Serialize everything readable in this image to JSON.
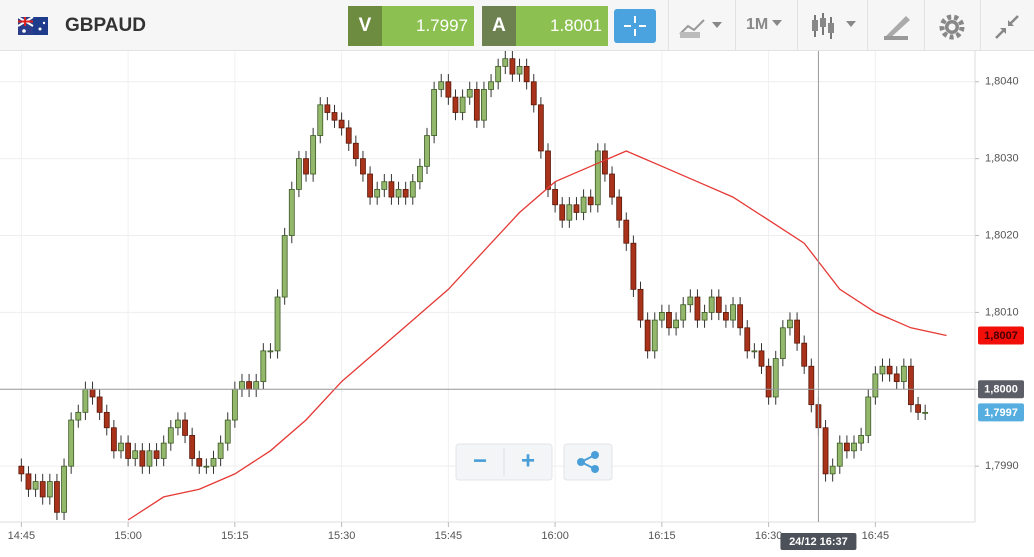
{
  "header": {
    "symbol": "GBPAUD",
    "bid_label": "V",
    "bid": "1.7997",
    "ask_label": "A",
    "ask": "1.8001",
    "timeframe": "1M"
  },
  "zoom": {
    "out": "−",
    "in": "+"
  },
  "chart_data": {
    "type": "candlestick",
    "x": [
      "14:45",
      "14:46",
      "14:47",
      "14:48",
      "14:49",
      "14:50",
      "14:51",
      "14:52",
      "14:53",
      "14:54",
      "14:55",
      "14:56",
      "14:57",
      "14:58",
      "14:59",
      "15:00",
      "15:01",
      "15:02",
      "15:03",
      "15:04",
      "15:05",
      "15:06",
      "15:07",
      "15:08",
      "15:09",
      "15:10",
      "15:11",
      "15:12",
      "15:13",
      "15:14",
      "15:15",
      "15:16",
      "15:17",
      "15:18",
      "15:19",
      "15:20",
      "15:21",
      "15:22",
      "15:23",
      "15:24",
      "15:25",
      "15:26",
      "15:27",
      "15:28",
      "15:29",
      "15:30",
      "15:31",
      "15:32",
      "15:33",
      "15:34",
      "15:35",
      "15:36",
      "15:37",
      "15:38",
      "15:39",
      "15:40",
      "15:41",
      "15:42",
      "15:43",
      "15:44",
      "15:45",
      "15:46",
      "15:47",
      "15:48",
      "15:49",
      "15:50",
      "15:51",
      "15:52",
      "15:53",
      "15:54",
      "15:55",
      "15:56",
      "15:57",
      "15:58",
      "15:59",
      "16:00",
      "16:01",
      "16:02",
      "16:03",
      "16:04",
      "16:05",
      "16:06",
      "16:07",
      "16:08",
      "16:09",
      "16:10",
      "16:11",
      "16:12",
      "16:13",
      "16:14",
      "16:15",
      "16:16",
      "16:17",
      "16:18",
      "16:19",
      "16:20",
      "16:21",
      "16:22",
      "16:23",
      "16:24",
      "16:25",
      "16:26",
      "16:27",
      "16:28",
      "16:29",
      "16:30",
      "16:31",
      "16:32",
      "16:33",
      "16:34",
      "16:35",
      "16:36",
      "16:37",
      "16:38",
      "16:39",
      "16:40",
      "16:41",
      "16:42",
      "16:43",
      "16:44",
      "16:45",
      "16:46",
      "16:47",
      "16:48",
      "16:49",
      "16:50",
      "16:51",
      "16:52"
    ],
    "open": [
      1.799,
      1.7989,
      1.7987,
      1.7988,
      1.7986,
      1.7988,
      1.7984,
      1.799,
      1.7996,
      1.7997,
      1.8,
      1.7999,
      1.7997,
      1.7995,
      1.7992,
      1.7993,
      1.7991,
      1.7992,
      1.799,
      1.7992,
      1.7991,
      1.7993,
      1.7995,
      1.7996,
      1.7994,
      1.7991,
      1.799,
      1.799,
      1.7991,
      1.7993,
      1.7996,
      1.8,
      1.8001,
      1.8,
      1.8001,
      1.8005,
      1.8005,
      1.8012,
      1.802,
      1.8026,
      1.803,
      1.8028,
      1.8033,
      1.8037,
      1.8036,
      1.8035,
      1.8034,
      1.8032,
      1.803,
      1.8028,
      1.8025,
      1.8026,
      1.8027,
      1.8025,
      1.8026,
      1.8025,
      1.8027,
      1.8029,
      1.8033,
      1.8039,
      1.804,
      1.8038,
      1.8036,
      1.8038,
      1.8039,
      1.8035,
      1.8039,
      1.804,
      1.8042,
      1.8043,
      1.8041,
      1.8042,
      1.804,
      1.8037,
      1.8031,
      1.8026,
      1.8024,
      1.8022,
      1.8024,
      1.8023,
      1.8025,
      1.8024,
      1.8031,
      1.8028,
      1.8025,
      1.8022,
      1.8019,
      1.8013,
      1.8009,
      1.8005,
      1.8009,
      1.801,
      1.8008,
      1.8009,
      1.8011,
      1.8012,
      1.8009,
      1.801,
      1.8012,
      1.801,
      1.8009,
      1.8011,
      1.8008,
      1.8005,
      1.8005,
      1.8003,
      1.7999,
      1.8004,
      1.8008,
      1.8009,
      1.8006,
      1.8003,
      1.7998,
      1.7995,
      1.7989,
      1.799,
      1.7993,
      1.7992,
      1.7993,
      1.7994,
      1.7999,
      1.8002,
      1.8003,
      1.8002,
      1.8001,
      1.8003,
      1.7998,
      1.7997
    ],
    "high": [
      1.7991,
      1.799,
      1.7989,
      1.7989,
      1.7989,
      1.7989,
      1.7991,
      1.7997,
      1.7998,
      1.8001,
      1.8001,
      1.8,
      1.7998,
      1.7996,
      1.7994,
      1.7994,
      1.7993,
      1.7993,
      1.7993,
      1.7993,
      1.7994,
      1.7996,
      1.7997,
      1.7997,
      1.7995,
      1.7992,
      1.7991,
      1.7992,
      1.7994,
      1.7997,
      1.8001,
      1.8002,
      1.8002,
      1.8002,
      1.8006,
      1.8006,
      1.8013,
      1.8021,
      1.8027,
      1.8031,
      1.8031,
      1.8034,
      1.8038,
      1.8038,
      1.8037,
      1.8036,
      1.8035,
      1.8033,
      1.8031,
      1.8029,
      1.8027,
      1.8028,
      1.8028,
      1.8027,
      1.8027,
      1.8028,
      1.803,
      1.8034,
      1.804,
      1.8041,
      1.8041,
      1.8039,
      1.8039,
      1.804,
      1.804,
      1.804,
      1.8041,
      1.8043,
      1.8044,
      1.8044,
      1.8043,
      1.8043,
      1.8041,
      1.8038,
      1.8032,
      1.8027,
      1.8025,
      1.8025,
      1.8025,
      1.8026,
      1.8026,
      1.8032,
      1.8032,
      1.8029,
      1.8026,
      1.8023,
      1.802,
      1.8014,
      1.801,
      1.801,
      1.8011,
      1.8011,
      1.801,
      1.8012,
      1.8013,
      1.8013,
      1.8011,
      1.8013,
      1.8013,
      1.8011,
      1.8012,
      1.8012,
      1.8009,
      1.8006,
      1.8006,
      1.8004,
      1.8005,
      1.8009,
      1.801,
      1.801,
      1.8007,
      1.8004,
      1.7999,
      1.7996,
      1.7991,
      1.7994,
      1.7994,
      1.7994,
      1.7995,
      1.8,
      1.8003,
      1.8004,
      1.8004,
      1.8003,
      1.8004,
      1.8004,
      1.7999,
      1.7998
    ],
    "low": [
      1.7988,
      1.7986,
      1.7986,
      1.7985,
      1.7985,
      1.7983,
      1.7983,
      1.7989,
      1.7995,
      1.7996,
      1.7998,
      1.7996,
      1.7994,
      1.7991,
      1.7991,
      1.799,
      1.799,
      1.7989,
      1.7989,
      1.799,
      1.799,
      1.7992,
      1.7994,
      1.7993,
      1.799,
      1.7989,
      1.7989,
      1.7989,
      1.799,
      1.7992,
      1.7995,
      1.7999,
      1.7999,
      1.7999,
      1.8,
      1.8004,
      1.8004,
      1.8011,
      1.8019,
      1.8025,
      1.8027,
      1.8027,
      1.8032,
      1.8035,
      1.8034,
      1.8033,
      1.8031,
      1.8029,
      1.8027,
      1.8024,
      1.8024,
      1.8025,
      1.8024,
      1.8024,
      1.8024,
      1.8024,
      1.8026,
      1.8028,
      1.8032,
      1.8038,
      1.8037,
      1.8035,
      1.8035,
      1.8037,
      1.8034,
      1.8034,
      1.8038,
      1.8039,
      1.8041,
      1.804,
      1.804,
      1.8039,
      1.8036,
      1.803,
      1.8025,
      1.8023,
      1.8021,
      1.8021,
      1.8022,
      1.8022,
      1.8023,
      1.8023,
      1.8027,
      1.8024,
      1.8021,
      1.8018,
      1.8012,
      1.8008,
      1.8004,
      1.8004,
      1.8008,
      1.8007,
      1.8007,
      1.8008,
      1.801,
      1.8008,
      1.8008,
      1.8009,
      1.8009,
      1.8008,
      1.8008,
      1.8007,
      1.8004,
      1.8004,
      1.8002,
      1.7998,
      1.7998,
      1.8003,
      1.8007,
      1.8005,
      1.8002,
      1.7997,
      1.7994,
      1.7988,
      1.7988,
      1.7989,
      1.7991,
      1.7991,
      1.7992,
      1.7993,
      1.7998,
      1.8001,
      1.8001,
      1.8,
      1.8,
      1.7997,
      1.7996,
      1.7996
    ],
    "close": [
      1.7989,
      1.7987,
      1.7988,
      1.7986,
      1.7988,
      1.7984,
      1.799,
      1.7996,
      1.7997,
      1.8,
      1.7999,
      1.7997,
      1.7995,
      1.7992,
      1.7993,
      1.7991,
      1.7992,
      1.799,
      1.7992,
      1.7991,
      1.7993,
      1.7995,
      1.7996,
      1.7994,
      1.7991,
      1.799,
      1.799,
      1.7991,
      1.7993,
      1.7996,
      1.8,
      1.8001,
      1.8,
      1.8001,
      1.8005,
      1.8005,
      1.8012,
      1.802,
      1.8026,
      1.803,
      1.8028,
      1.8033,
      1.8037,
      1.8036,
      1.8035,
      1.8034,
      1.8032,
      1.803,
      1.8028,
      1.8025,
      1.8026,
      1.8027,
      1.8025,
      1.8026,
      1.8025,
      1.8027,
      1.8029,
      1.8033,
      1.8039,
      1.804,
      1.8038,
      1.8036,
      1.8038,
      1.8039,
      1.8035,
      1.8039,
      1.804,
      1.8042,
      1.8043,
      1.8041,
      1.8042,
      1.804,
      1.8037,
      1.8031,
      1.8026,
      1.8024,
      1.8022,
      1.8024,
      1.8023,
      1.8025,
      1.8024,
      1.8031,
      1.8028,
      1.8025,
      1.8022,
      1.8019,
      1.8013,
      1.8009,
      1.8005,
      1.8009,
      1.801,
      1.8008,
      1.8009,
      1.8011,
      1.8012,
      1.8009,
      1.801,
      1.8012,
      1.801,
      1.8009,
      1.8011,
      1.8008,
      1.8005,
      1.8005,
      1.8003,
      1.7999,
      1.8004,
      1.8008,
      1.8009,
      1.8006,
      1.8003,
      1.7998,
      1.7995,
      1.7989,
      1.799,
      1.7993,
      1.7992,
      1.7993,
      1.7994,
      1.7999,
      1.8002,
      1.8003,
      1.8002,
      1.8001,
      1.8003,
      1.7998,
      1.7997,
      1.7997
    ],
    "up_color": "#93b86b",
    "down_color": "#a8321a",
    "xlim": [
      "14:42",
      "16:59"
    ],
    "xticks": [
      "14:45",
      "15:00",
      "15:15",
      "15:30",
      "15:45",
      "16:00",
      "16:15",
      "16:30",
      "16:45"
    ],
    "ylim": [
      1.7983,
      1.8044
    ],
    "yticks": [
      {
        "value": 1.799,
        "label": "1,7990"
      },
      {
        "value": 1.8,
        "label": "1,8000"
      },
      {
        "value": 1.801,
        "label": "1,8010"
      },
      {
        "value": 1.802,
        "label": "1,8020"
      },
      {
        "value": 1.803,
        "label": "1,8030"
      },
      {
        "value": 1.804,
        "label": "1,8040"
      }
    ],
    "grid": true,
    "moving_average": {
      "color": "#e53935",
      "x": [
        "15:00",
        "15:05",
        "15:10",
        "15:15",
        "15:20",
        "15:25",
        "15:30",
        "15:35",
        "15:40",
        "15:45",
        "15:50",
        "15:55",
        "16:00",
        "16:05",
        "16:10",
        "16:15",
        "16:20",
        "16:25",
        "16:30",
        "16:35",
        "16:40",
        "16:45",
        "16:50",
        "16:55"
      ],
      "values": [
        1.7983,
        1.7986,
        1.7987,
        1.7989,
        1.7992,
        1.7996,
        1.8001,
        1.8005,
        1.8009,
        1.8013,
        1.8018,
        1.8023,
        1.8027,
        1.8029,
        1.8031,
        1.8029,
        1.8027,
        1.8025,
        1.8022,
        1.8019,
        1.8013,
        1.801,
        1.8008,
        1.8007
      ]
    },
    "price_labels": [
      {
        "value": 1.8007,
        "label": "1,8007",
        "color": "#f20f0a"
      },
      {
        "value": 1.8,
        "label": "1,8000",
        "color": "#5b5e66"
      },
      {
        "value": 1.7997,
        "label": "1,7997",
        "color": "#56aee0"
      }
    ],
    "crosshair": {
      "x": "16:37",
      "y": 1.8,
      "label": "24/12 16:37"
    }
  }
}
